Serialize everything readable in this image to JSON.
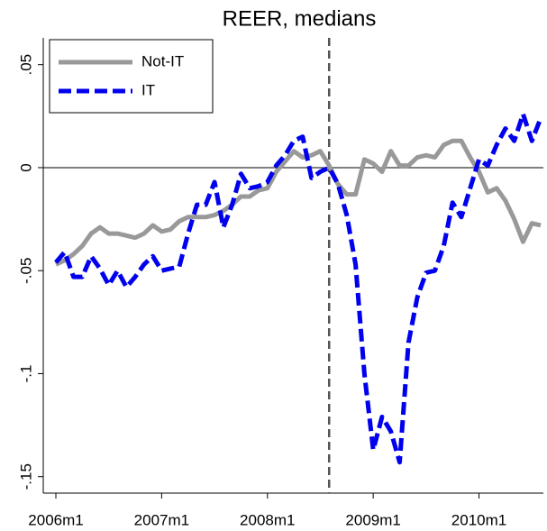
{
  "chart_data": {
    "type": "line",
    "title": "REER, medians",
    "categories": [
      "2006m1",
      null,
      null,
      null,
      null,
      null,
      null,
      null,
      null,
      null,
      null,
      null,
      "2007m1",
      null,
      null,
      null,
      null,
      null,
      null,
      null,
      null,
      null,
      null,
      null,
      "2008m1",
      null,
      null,
      null,
      null,
      null,
      null,
      null,
      null,
      null,
      null,
      null,
      "2009m1",
      null,
      null,
      null,
      null,
      null,
      null,
      null,
      null,
      null,
      null,
      null,
      "2010m1",
      null,
      null,
      null,
      null,
      null,
      null,
      null
    ],
    "series": [
      {
        "name": "Not-IT",
        "color": "#999999",
        "dash": false,
        "values": [
          -0.047,
          -0.045,
          -0.042,
          -0.038,
          -0.032,
          -0.029,
          -0.032,
          -0.032,
          -0.033,
          -0.034,
          -0.032,
          -0.028,
          -0.031,
          -0.03,
          -0.026,
          -0.024,
          -0.024,
          -0.024,
          -0.023,
          -0.021,
          -0.018,
          -0.014,
          -0.014,
          -0.011,
          -0.01,
          -0.002,
          0.003,
          0.008,
          0.005,
          0.006,
          0.008,
          0.001,
          -0.008,
          -0.013,
          -0.013,
          0.004,
          0.002,
          -0.002,
          0.008,
          0.001,
          0.001,
          0.005,
          0.006,
          0.005,
          0.011,
          0.013,
          0.013,
          0.005,
          -0.002,
          -0.012,
          -0.01,
          -0.016,
          -0.025,
          -0.036,
          -0.027,
          -0.028
        ]
      },
      {
        "name": "IT",
        "color": "#0000ee",
        "dash": true,
        "values": [
          -0.046,
          -0.041,
          -0.053,
          -0.053,
          -0.043,
          -0.049,
          -0.057,
          -0.05,
          -0.058,
          -0.053,
          -0.047,
          -0.043,
          -0.05,
          -0.049,
          -0.048,
          -0.032,
          -0.018,
          -0.018,
          -0.007,
          -0.029,
          -0.018,
          -0.003,
          -0.01,
          -0.009,
          -0.007,
          0.001,
          0.006,
          0.013,
          0.015,
          -0.005,
          -0.002,
          0.0,
          -0.008,
          -0.023,
          -0.047,
          -0.1,
          -0.137,
          -0.121,
          -0.128,
          -0.143,
          -0.085,
          -0.063,
          -0.051,
          -0.05,
          -0.038,
          -0.017,
          -0.024,
          -0.01,
          0.004,
          0.001,
          0.011,
          0.019,
          0.013,
          0.026,
          0.013,
          0.024
        ]
      }
    ],
    "ylim": [
      -0.158,
      0.063
    ],
    "yticks": [
      {
        "value": -0.15,
        "label": "-.15"
      },
      {
        "value": -0.1,
        "label": "-.1"
      },
      {
        "value": -0.05,
        "label": "-.05"
      },
      0,
      {
        "value": 0.05,
        "label": ".05"
      }
    ],
    "yline": 0,
    "xline_category_index": 31,
    "legend": "top-left"
  }
}
